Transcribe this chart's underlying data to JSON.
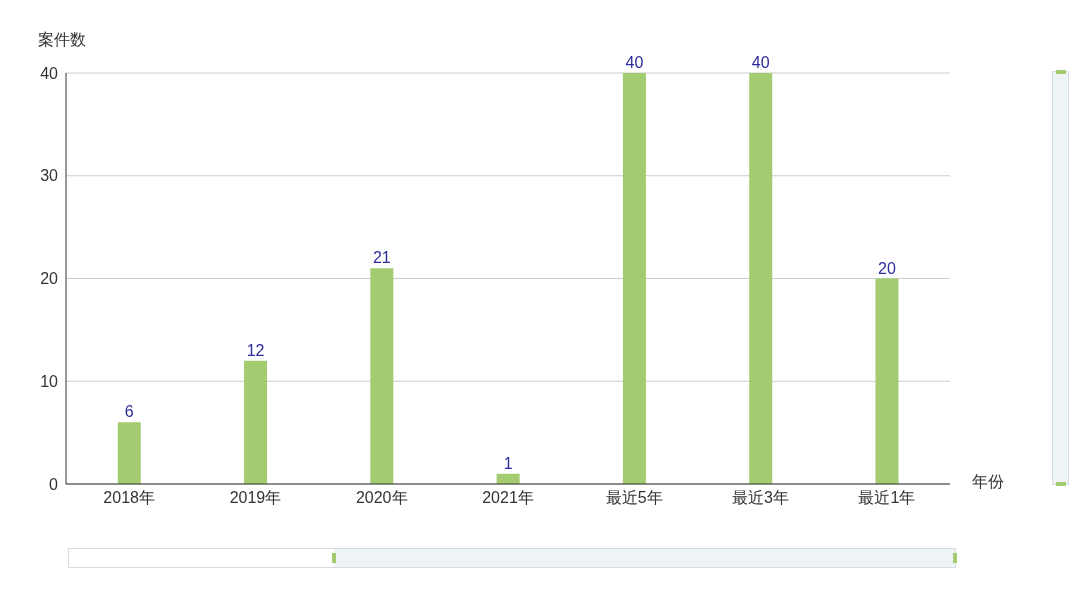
{
  "chart_data": {
    "type": "bar",
    "xlabel": "年份",
    "ylabel": "案件数",
    "categories": [
      "2018年",
      "2019年",
      "2020年",
      "2021年",
      "最近5年",
      "最近3年",
      "最近1年"
    ],
    "values": [
      6,
      12,
      21,
      1,
      40,
      40,
      20
    ],
    "color": "#a3cb6f",
    "ylim": [
      0,
      40
    ],
    "yticks": [
      0,
      10,
      20,
      30,
      40
    ],
    "grid": "y",
    "data_labels": true
  }
}
